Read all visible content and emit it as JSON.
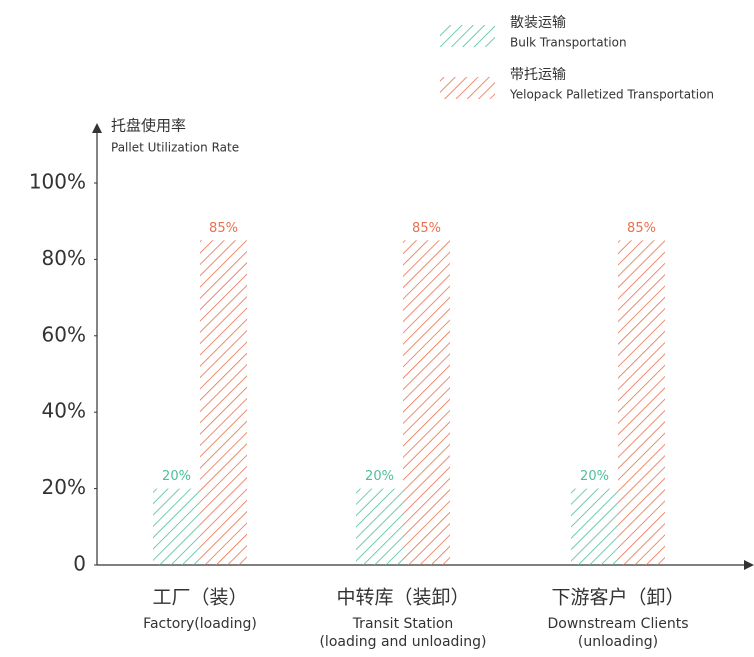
{
  "chart_data": {
    "type": "bar",
    "y_label": "托盘使用率",
    "y_label_en": "Pallet Utilization Rate",
    "categories": [
      "工厂（装）",
      "中转库（装卸）",
      "下游客户（卸）"
    ],
    "categories_en": [
      [
        "Factory(loading)"
      ],
      [
        "Transit Station",
        "(loading and unloading)"
      ],
      [
        "Downstream Clients",
        "(unloading)"
      ]
    ],
    "series": [
      {
        "name": "散装运输",
        "name_en": "Bulk Transportation",
        "color": "#4dbf9c",
        "values": [
          20,
          20,
          20
        ],
        "value_labels": [
          "20%",
          "20%",
          "20%"
        ]
      },
      {
        "name": "带托运输",
        "name_en": "Yelopack Palletized Transportation",
        "color": "#e8714f",
        "values": [
          85,
          85,
          85
        ],
        "value_labels": [
          "85%",
          "85%",
          "85%"
        ]
      }
    ],
    "ylim": [
      0,
      100
    ],
    "yticks": [
      0,
      {
        "value": 20,
        "label": "20%"
      },
      {
        "value": 40,
        "label": "40%"
      },
      {
        "value": 60,
        "label": "60%"
      },
      {
        "value": 80,
        "label": "80%"
      },
      {
        "value": 100,
        "label": "100%"
      }
    ]
  }
}
